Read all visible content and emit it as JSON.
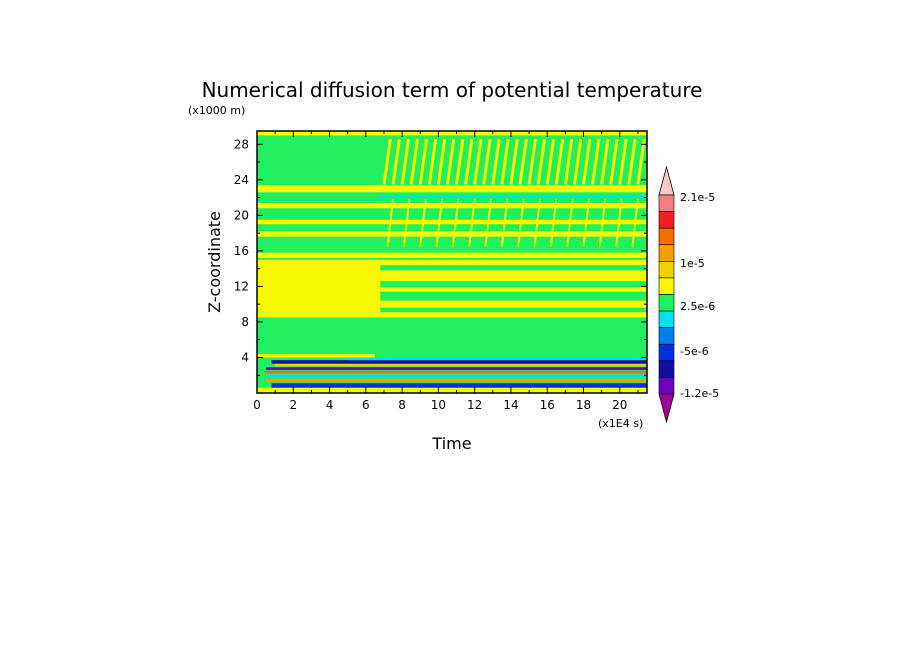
{
  "chart_data": {
    "type": "heatmap",
    "title": "Numerical diffusion term of potential temperature",
    "xlabel": "Time",
    "ylabel": "Z-coordinate",
    "x_unit": "(x1E4 s)",
    "y_unit": "(x1000 m)",
    "xlim": [
      0,
      21.5
    ],
    "ylim": [
      0,
      29.5
    ],
    "x_ticks": [
      "0",
      "2",
      "4",
      "6",
      "8",
      "10",
      "12",
      "14",
      "16",
      "18",
      "20"
    ],
    "y_ticks": [
      "4",
      "8",
      "12",
      "16",
      "20",
      "24",
      "28"
    ],
    "colorbar": {
      "labels": [
        "2.1e-5",
        "1e-5",
        "2.5e-6",
        "-5e-6",
        "-1.2e-5"
      ],
      "colors": [
        "#f8c8c8",
        "#f08080",
        "#f02020",
        "#f07000",
        "#f0a000",
        "#f0d000",
        "#f8f800",
        "#20f060",
        "#00e0f0",
        "#0080f0",
        "#0030e0",
        "#1010a0",
        "#7000c0",
        "#a000a0"
      ]
    },
    "background_color": "#20f060",
    "bands": [
      {
        "z0": 0.0,
        "z1": 0.6,
        "t0": 0.0,
        "t1": 21.5,
        "color": "#f8f800"
      },
      {
        "z0": 0.6,
        "z1": 1.1,
        "t0": 0.8,
        "t1": 21.5,
        "color": "#0030e0"
      },
      {
        "z0": 1.2,
        "z1": 1.6,
        "t0": 0.5,
        "t1": 21.5,
        "color": "#f0a000"
      },
      {
        "z0": 1.7,
        "z1": 2.1,
        "t0": 0.6,
        "t1": 21.5,
        "color": "#00e0f0"
      },
      {
        "z0": 2.2,
        "z1": 2.5,
        "t0": 0.4,
        "t1": 21.5,
        "color": "#f07000"
      },
      {
        "z0": 2.6,
        "z1": 2.9,
        "t0": 0.5,
        "t1": 21.5,
        "color": "#7000c0"
      },
      {
        "z0": 3.0,
        "z1": 3.3,
        "t0": 1.0,
        "t1": 21.5,
        "color": "#f0d000"
      },
      {
        "z0": 3.3,
        "z1": 3.7,
        "t0": 0.8,
        "t1": 21.5,
        "color": "#1010a0"
      },
      {
        "z0": 3.7,
        "z1": 4.0,
        "t0": 5.0,
        "t1": 21.5,
        "color": "#00e0f0"
      },
      {
        "z0": 4.0,
        "z1": 4.4,
        "t0": 0.0,
        "t1": 6.5,
        "color": "#f8f800"
      },
      {
        "z0": 8.5,
        "z1": 9.1,
        "t0": 0.0,
        "t1": 21.5,
        "color": "#f8f800"
      },
      {
        "z0": 9.1,
        "z1": 15.0,
        "t0": 0.0,
        "t1": 6.8,
        "color": "#f8f800"
      },
      {
        "z0": 9.6,
        "z1": 10.4,
        "t0": 6.8,
        "t1": 21.5,
        "color": "#f8f800"
      },
      {
        "z0": 11.4,
        "z1": 11.9,
        "t0": 6.8,
        "t1": 21.5,
        "color": "#f8f800"
      },
      {
        "z0": 12.6,
        "z1": 13.8,
        "t0": 6.8,
        "t1": 21.5,
        "color": "#f8f800"
      },
      {
        "z0": 14.4,
        "z1": 15.0,
        "t0": 6.8,
        "t1": 21.5,
        "color": "#f8f800"
      },
      {
        "z0": 15.2,
        "z1": 15.8,
        "t0": 0.0,
        "t1": 21.5,
        "color": "#f8f800"
      },
      {
        "z0": 17.6,
        "z1": 18.2,
        "t0": 0.0,
        "t1": 21.5,
        "color": "#f8f800"
      },
      {
        "z0": 19.0,
        "z1": 19.5,
        "t0": 0.0,
        "t1": 21.5,
        "color": "#f8f800"
      },
      {
        "z0": 20.8,
        "z1": 21.4,
        "t0": 0.0,
        "t1": 21.5,
        "color": "#f8f800"
      },
      {
        "z0": 22.6,
        "z1": 23.4,
        "t0": 0.0,
        "t1": 21.5,
        "color": "#f8f800"
      },
      {
        "z0": 22.0,
        "z1": 22.3,
        "t0": 6.8,
        "t1": 21.5,
        "color": "#00e0f0"
      },
      {
        "z0": 29.0,
        "z1": 29.5,
        "t0": 0.0,
        "t1": 21.5,
        "color": "#f8f800"
      }
    ]
  }
}
